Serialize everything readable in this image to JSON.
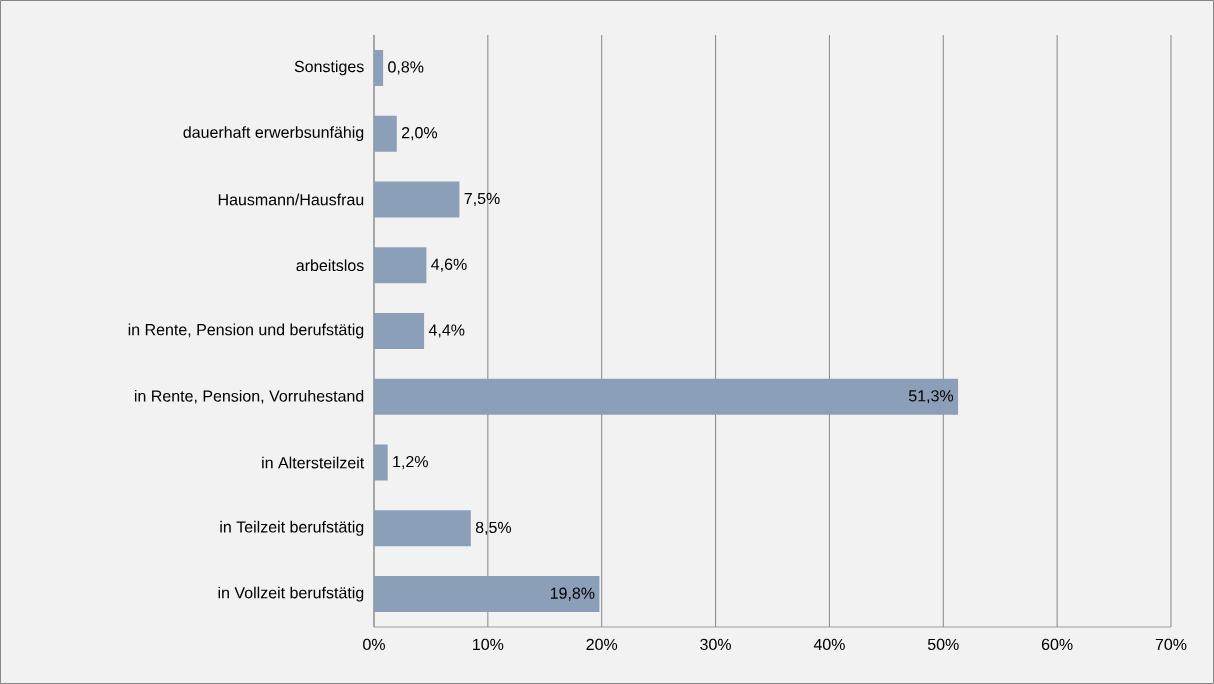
{
  "chart_data": {
    "type": "bar",
    "orientation": "horizontal",
    "categories": [
      "Sonstiges",
      "dauerhaft erwerbsunfähig",
      "Hausmann/Hausfrau",
      "arbeitslos",
      "in Rente, Pension und berufstätig",
      "in Rente, Pension, Vorruhestand",
      "in Altersteilzeit",
      "in Teilzeit berufstätig",
      "in Vollzeit berufstätig"
    ],
    "values": [
      0.8,
      2.0,
      7.5,
      4.6,
      4.4,
      51.3,
      1.2,
      8.5,
      19.8
    ],
    "value_labels": [
      "0,8%",
      "2,0%",
      "7,5%",
      "4,6%",
      "4,4%",
      "51,3%",
      "1,2%",
      "8,5%",
      "19,8%"
    ],
    "color": "#8c9fb8",
    "xlim": [
      0,
      70
    ],
    "xticks": [
      {
        "value": 0,
        "label": "0%"
      },
      {
        "value": 10,
        "label": "10%"
      },
      {
        "value": 20,
        "label": "20%"
      },
      {
        "value": 30,
        "label": "30%"
      },
      {
        "value": 40,
        "label": "40%"
      },
      {
        "value": 50,
        "label": "50%"
      },
      {
        "value": 60,
        "label": "60%"
      },
      {
        "value": 70,
        "label": "70%"
      }
    ],
    "grid": "x"
  }
}
